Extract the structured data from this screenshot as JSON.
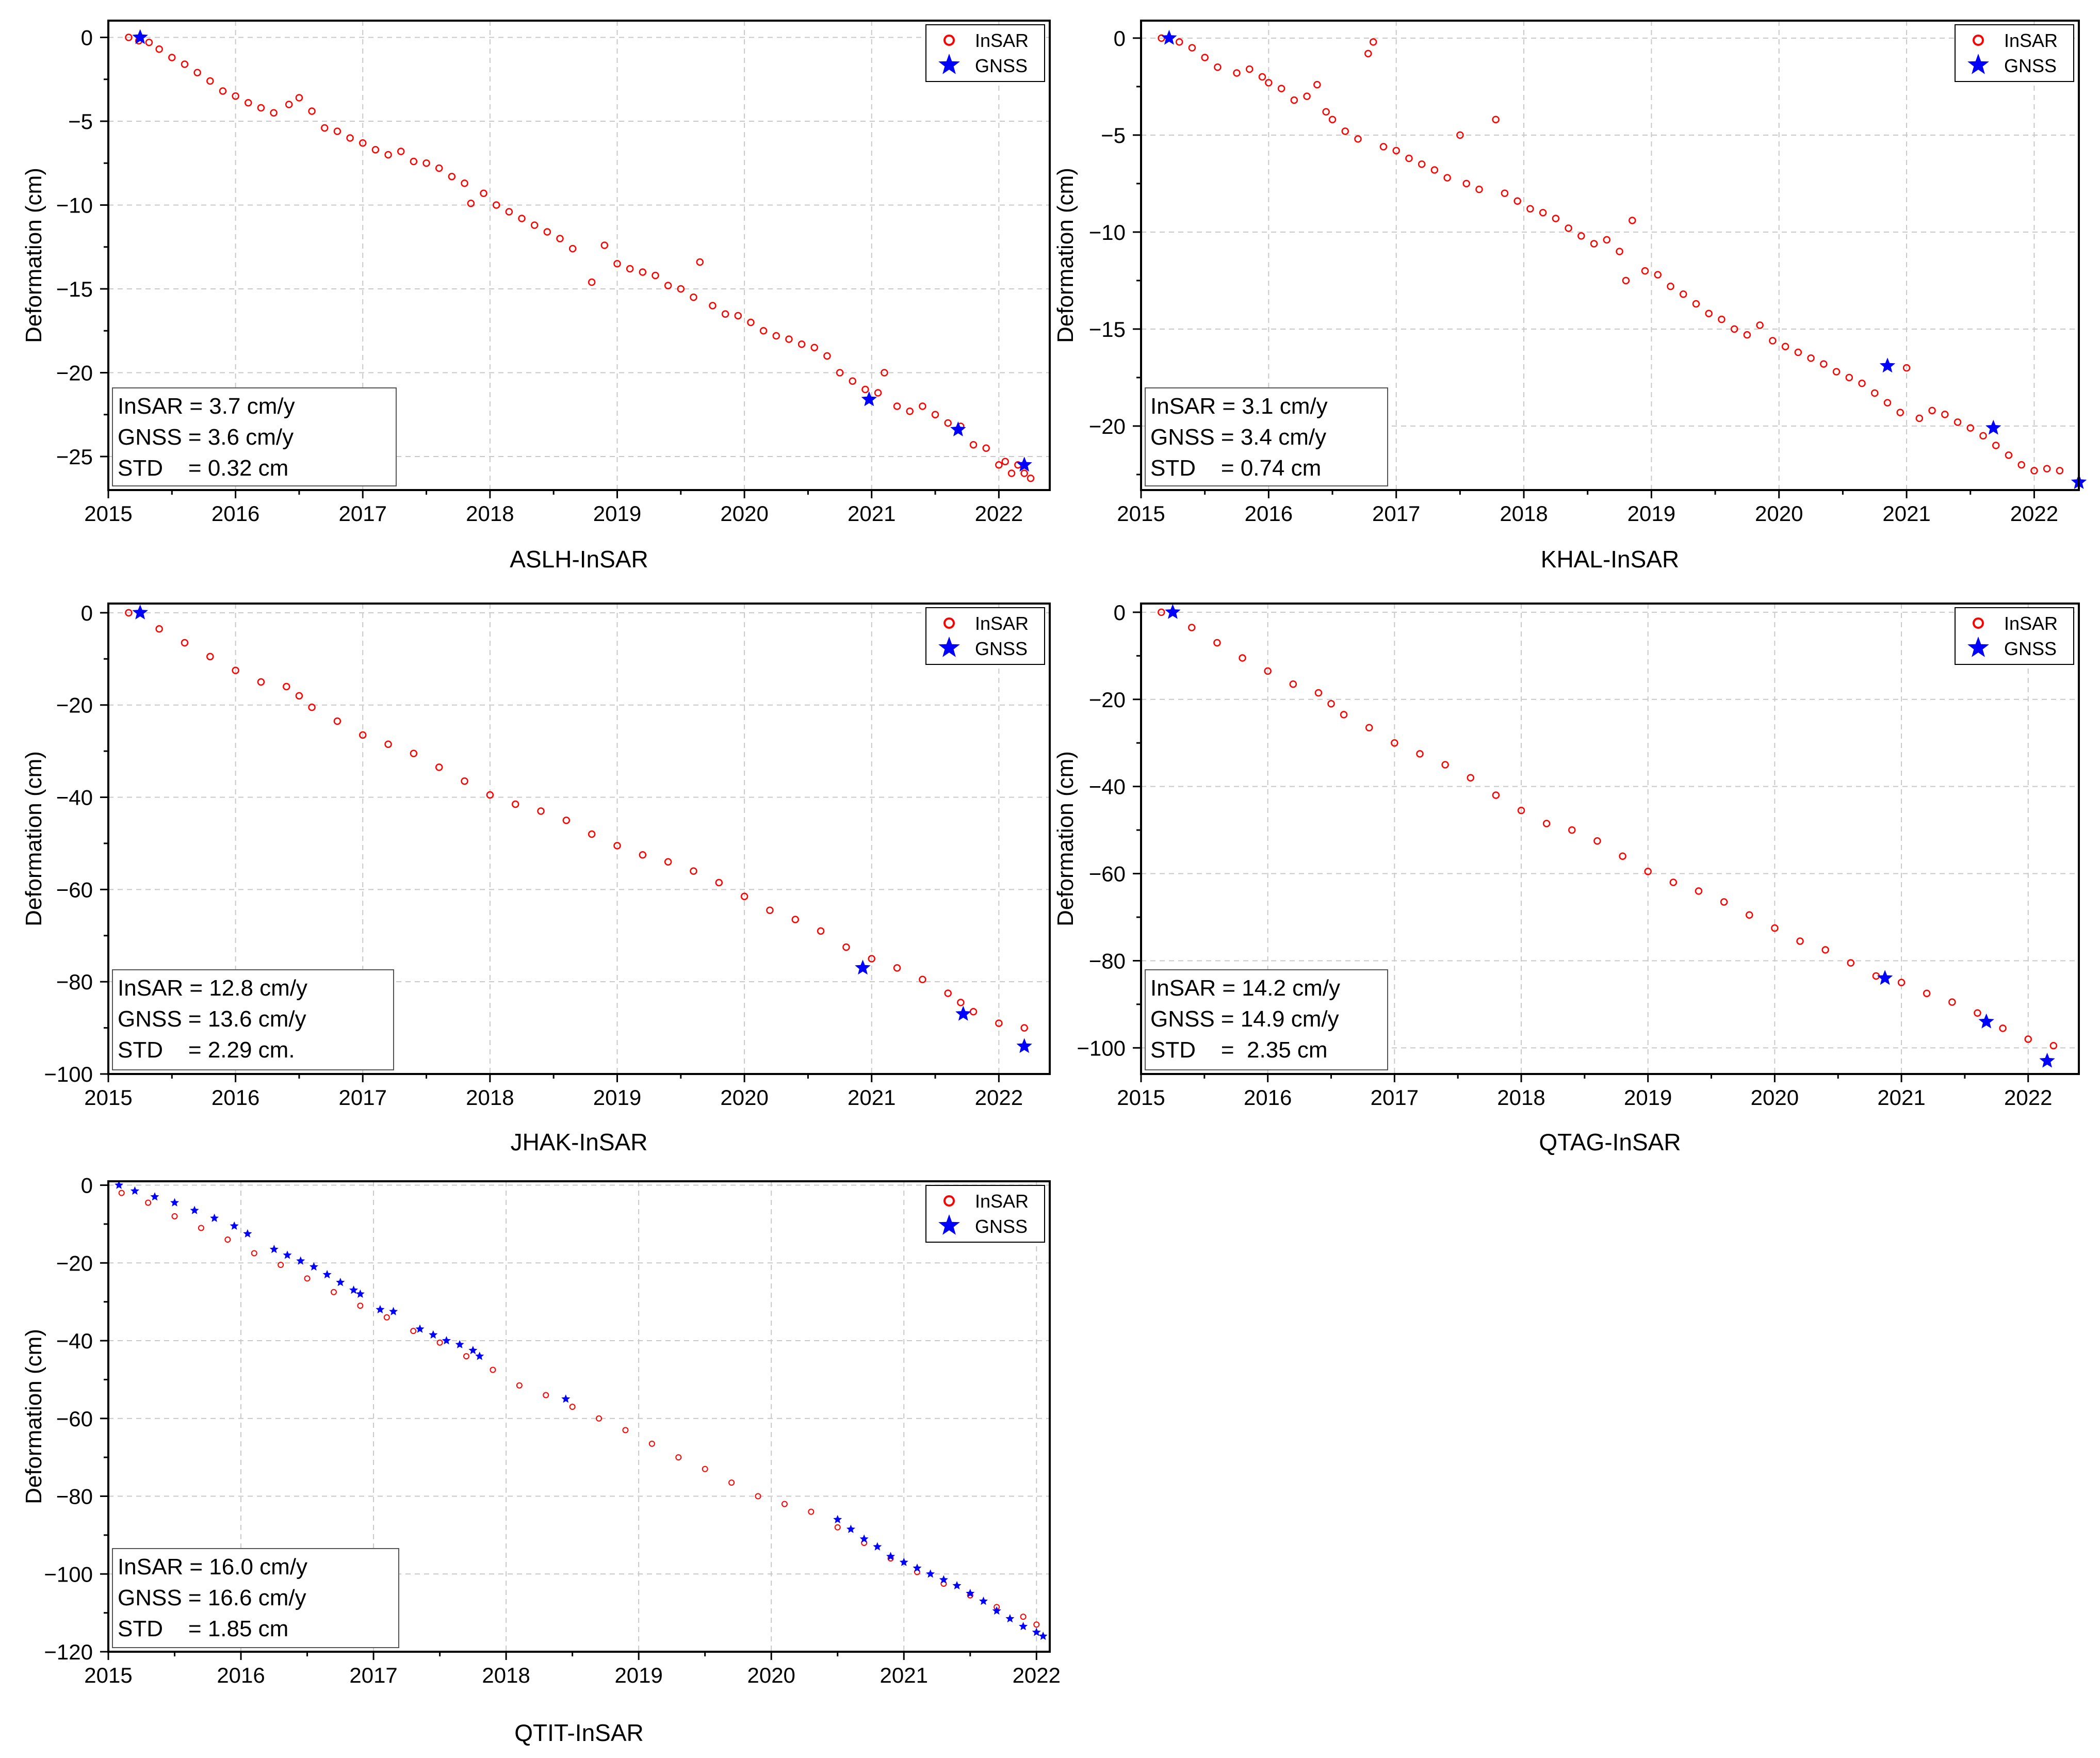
{
  "figure_title": "",
  "colors": {
    "insar": "#ff0000",
    "gnss": "#0000ff",
    "grid": "#c8c8c8",
    "frame": "#000000"
  },
  "legend": {
    "insar_label": "InSAR",
    "gnss_label": "GNSS",
    "insar_icon": "open-circle-marker-icon",
    "gnss_icon": "star-marker-icon"
  },
  "chart_data": [
    {
      "type": "scatter",
      "title": "",
      "caption": "ASLH-InSAR",
      "xlabel": "",
      "ylabel": "Deformation (cm)",
      "xlim": [
        2015,
        2022.4
      ],
      "ylim": [
        -27,
        1
      ],
      "xticks": [
        2015,
        2016,
        2017,
        2018,
        2019,
        2020,
        2021,
        2022
      ],
      "yticks": [
        -25,
        -20,
        -15,
        -10,
        -5,
        0
      ],
      "ytick_labels": [
        "−25",
        "−20",
        "−15",
        "−10",
        "−5",
        "0"
      ],
      "grid": true,
      "legend_position": "top-right",
      "stats": [
        "InSAR = 3.7 cm/y",
        "GNSS = 3.6 cm/y",
        "STD    = 0.32 cm"
      ],
      "series": [
        {
          "name": "InSAR",
          "x": [
            2015.16,
            2015.24,
            2015.32,
            2015.4,
            2015.5,
            2015.6,
            2015.7,
            2015.8,
            2015.9,
            2016.0,
            2016.1,
            2016.2,
            2016.3,
            2016.42,
            2016.5,
            2016.6,
            2016.7,
            2016.8,
            2016.9,
            2017.0,
            2017.1,
            2017.2,
            2017.3,
            2017.4,
            2017.5,
            2017.6,
            2017.7,
            2017.8,
            2017.85,
            2017.95,
            2018.05,
            2018.15,
            2018.25,
            2018.35,
            2018.45,
            2018.55,
            2018.65,
            2018.8,
            2018.9,
            2019.0,
            2019.1,
            2019.2,
            2019.3,
            2019.4,
            2019.5,
            2019.6,
            2019.65,
            2019.75,
            2019.85,
            2019.95,
            2020.05,
            2020.15,
            2020.25,
            2020.35,
            2020.45,
            2020.55,
            2020.65,
            2020.75,
            2020.85,
            2020.95,
            2021.05,
            2021.1,
            2021.2,
            2021.3,
            2021.4,
            2021.5,
            2021.6,
            2021.7,
            2021.8,
            2021.9,
            2022.0,
            2022.05,
            2022.1,
            2022.15,
            2022.2,
            2022.25
          ],
          "y": [
            0.0,
            -0.2,
            -0.3,
            -0.7,
            -1.2,
            -1.6,
            -2.1,
            -2.6,
            -3.2,
            -3.5,
            -3.9,
            -4.2,
            -4.5,
            -4.0,
            -3.6,
            -4.4,
            -5.4,
            -5.6,
            -6.0,
            -6.3,
            -6.7,
            -7.0,
            -6.8,
            -7.4,
            -7.5,
            -7.8,
            -8.3,
            -8.7,
            -9.9,
            -9.3,
            -10.0,
            -10.4,
            -10.8,
            -11.2,
            -11.6,
            -12.0,
            -12.6,
            -14.6,
            -12.4,
            -13.5,
            -13.8,
            -14.0,
            -14.2,
            -14.8,
            -15.0,
            -15.5,
            -13.4,
            -16.0,
            -16.5,
            -16.6,
            -17.0,
            -17.5,
            -17.8,
            -18.0,
            -18.3,
            -18.5,
            -19.0,
            -20.0,
            -20.5,
            -21.0,
            -21.2,
            -20.0,
            -22.0,
            -22.3,
            -22.0,
            -22.5,
            -23.0,
            -23.2,
            -24.3,
            -24.5,
            -25.5,
            -25.3,
            -26.0,
            -25.5,
            -26.0,
            -26.3
          ]
        },
        {
          "name": "GNSS",
          "x": [
            2015.25,
            2020.98,
            2021.68,
            2022.2
          ],
          "y": [
            0.0,
            -21.6,
            -23.4,
            -25.5
          ]
        }
      ]
    },
    {
      "type": "scatter",
      "title": "",
      "caption": "KHAL-InSAR",
      "xlabel": "",
      "ylabel": "Deformation (cm)",
      "xlim": [
        2015,
        2022.35
      ],
      "ylim": [
        -23.3,
        0.9
      ],
      "xticks": [
        2015,
        2016,
        2017,
        2018,
        2019,
        2020,
        2021,
        2022
      ],
      "yticks": [
        -20,
        -15,
        -10,
        -5,
        0
      ],
      "ytick_labels": [
        "−20",
        "−15",
        "−10",
        "−5",
        "0"
      ],
      "grid": true,
      "legend_position": "top-right",
      "stats": [
        "InSAR = 3.1 cm/y",
        "GNSS = 3.4 cm/y",
        "STD    = 0.74 cm"
      ],
      "series": [
        {
          "name": "InSAR",
          "x": [
            2015.16,
            2015.3,
            2015.4,
            2015.5,
            2015.6,
            2015.75,
            2015.85,
            2015.95,
            2016.0,
            2016.1,
            2016.2,
            2016.3,
            2016.38,
            2016.45,
            2016.5,
            2016.6,
            2016.7,
            2016.78,
            2016.82,
            2016.9,
            2017.0,
            2017.1,
            2017.2,
            2017.3,
            2017.4,
            2017.5,
            2017.55,
            2017.65,
            2017.78,
            2017.85,
            2017.95,
            2018.05,
            2018.15,
            2018.25,
            2018.35,
            2018.45,
            2018.55,
            2018.65,
            2018.75,
            2018.8,
            2018.85,
            2018.95,
            2019.05,
            2019.15,
            2019.25,
            2019.35,
            2019.45,
            2019.55,
            2019.65,
            2019.75,
            2019.85,
            2019.95,
            2020.05,
            2020.15,
            2020.25,
            2020.35,
            2020.45,
            2020.55,
            2020.65,
            2020.75,
            2020.85,
            2020.95,
            2021.0,
            2021.1,
            2021.2,
            2021.3,
            2021.4,
            2021.5,
            2021.6,
            2021.7,
            2021.8,
            2021.9,
            2022.0,
            2022.1,
            2022.2
          ],
          "y": [
            0.0,
            -0.2,
            -0.5,
            -1.0,
            -1.5,
            -1.8,
            -1.6,
            -2.0,
            -2.3,
            -2.6,
            -3.2,
            -3.0,
            -2.4,
            -3.8,
            -4.2,
            -4.8,
            -5.2,
            -0.8,
            -0.2,
            -5.6,
            -5.8,
            -6.2,
            -6.5,
            -6.8,
            -7.2,
            -5.0,
            -7.5,
            -7.8,
            -4.2,
            -8.0,
            -8.4,
            -8.8,
            -9.0,
            -9.3,
            -9.8,
            -10.2,
            -10.6,
            -10.4,
            -11.0,
            -12.5,
            -9.4,
            -12.0,
            -12.2,
            -12.8,
            -13.2,
            -13.7,
            -14.2,
            -14.5,
            -15.0,
            -15.3,
            -14.8,
            -15.6,
            -15.9,
            -16.2,
            -16.5,
            -16.8,
            -17.2,
            -17.5,
            -17.8,
            -18.3,
            -18.8,
            -19.3,
            -17.0,
            -19.6,
            -19.2,
            -19.4,
            -19.8,
            -20.1,
            -20.5,
            -21.0,
            -21.5,
            -22.0,
            -22.3,
            -22.2,
            -22.3
          ]
        },
        {
          "name": "GNSS",
          "x": [
            2015.22,
            2020.85,
            2021.68,
            2022.35
          ],
          "y": [
            0.0,
            -16.9,
            -20.1,
            -22.9
          ]
        }
      ]
    },
    {
      "type": "scatter",
      "title": "",
      "caption": "JHAK-InSAR",
      "xlabel": "",
      "ylabel": "Deformation (cm)",
      "xlim": [
        2015,
        2022.4
      ],
      "ylim": [
        -100,
        2
      ],
      "xticks": [
        2015,
        2016,
        2017,
        2018,
        2019,
        2020,
        2021,
        2022
      ],
      "yticks": [
        -100,
        -80,
        -60,
        -40,
        -20,
        0
      ],
      "ytick_labels": [
        "−100",
        "−80",
        "−60",
        "−40",
        "−20",
        "0"
      ],
      "grid": true,
      "legend_position": "top-right",
      "stats": [
        "InSAR = 12.8 cm/y",
        "GNSS = 13.6 cm/y",
        "STD    = 2.29 cm."
      ],
      "series": [
        {
          "name": "InSAR",
          "x": [
            2015.16,
            2015.4,
            2015.6,
            2015.8,
            2016.0,
            2016.2,
            2016.4,
            2016.5,
            2016.6,
            2016.8,
            2017.0,
            2017.2,
            2017.4,
            2017.6,
            2017.8,
            2018.0,
            2018.2,
            2018.4,
            2018.6,
            2018.8,
            2019.0,
            2019.2,
            2019.4,
            2019.6,
            2019.8,
            2020.0,
            2020.2,
            2020.4,
            2020.6,
            2020.8,
            2021.0,
            2021.2,
            2021.4,
            2021.6,
            2021.7,
            2021.8,
            2022.0,
            2022.2
          ],
          "y": [
            0.0,
            -3.5,
            -6.5,
            -9.5,
            -12.5,
            -15.0,
            -16.0,
            -18.0,
            -20.5,
            -23.5,
            -26.5,
            -28.5,
            -30.5,
            -33.5,
            -36.5,
            -39.5,
            -41.5,
            -43.0,
            -45.0,
            -48.0,
            -50.5,
            -52.5,
            -54.0,
            -56.0,
            -58.5,
            -61.5,
            -64.5,
            -66.5,
            -69.0,
            -72.5,
            -75.0,
            -77.0,
            -79.5,
            -82.5,
            -84.5,
            -86.5,
            -89.0,
            -90.0
          ]
        },
        {
          "name": "GNSS",
          "x": [
            2015.25,
            2020.93,
            2021.72,
            2022.2
          ],
          "y": [
            0.0,
            -77.0,
            -87.0,
            -94.0
          ]
        }
      ]
    },
    {
      "type": "scatter",
      "title": "",
      "caption": "QTAG-InSAR",
      "xlabel": "",
      "ylabel": "Deformation (cm)",
      "xlim": [
        2015,
        2022.4
      ],
      "ylim": [
        -106,
        2
      ],
      "xticks": [
        2015,
        2016,
        2017,
        2018,
        2019,
        2020,
        2021,
        2022
      ],
      "yticks": [
        -100,
        -80,
        -60,
        -40,
        -20,
        0
      ],
      "ytick_labels": [
        "−100",
        "−80",
        "−60",
        "−40",
        "−20",
        "0"
      ],
      "grid": true,
      "legend_position": "top-right",
      "stats": [
        "InSAR = 14.2 cm/y",
        "GNSS = 14.9 cm/y",
        "STD    =  2.35 cm"
      ],
      "series": [
        {
          "name": "InSAR",
          "x": [
            2015.16,
            2015.4,
            2015.6,
            2015.8,
            2016.0,
            2016.2,
            2016.4,
            2016.5,
            2016.6,
            2016.8,
            2017.0,
            2017.2,
            2017.4,
            2017.6,
            2017.8,
            2018.0,
            2018.2,
            2018.4,
            2018.6,
            2018.8,
            2019.0,
            2019.2,
            2019.4,
            2019.6,
            2019.8,
            2020.0,
            2020.2,
            2020.4,
            2020.6,
            2020.8,
            2021.0,
            2021.2,
            2021.4,
            2021.6,
            2021.8,
            2022.0,
            2022.2
          ],
          "y": [
            0.0,
            -3.5,
            -7.0,
            -10.5,
            -13.5,
            -16.5,
            -18.5,
            -21.0,
            -23.5,
            -26.5,
            -30.0,
            -32.5,
            -35.0,
            -38.0,
            -42.0,
            -45.5,
            -48.5,
            -50.0,
            -52.5,
            -56.0,
            -59.5,
            -62.0,
            -64.0,
            -66.5,
            -69.5,
            -72.5,
            -75.5,
            -77.5,
            -80.5,
            -83.5,
            -85.0,
            -87.5,
            -89.5,
            -92.0,
            -95.5,
            -98.0,
            -99.5
          ]
        },
        {
          "name": "GNSS",
          "x": [
            2015.25,
            2020.87,
            2021.67,
            2022.15
          ],
          "y": [
            0.0,
            -84.0,
            -94.0,
            -103.0
          ]
        }
      ]
    },
    {
      "type": "scatter",
      "title": "",
      "caption": "QTIT-InSAR",
      "xlabel": "",
      "ylabel": "Deformation (cm)",
      "xlim": [
        2015,
        2022.1
      ],
      "ylim": [
        -120,
        1
      ],
      "xticks": [
        2015,
        2016,
        2017,
        2018,
        2019,
        2020,
        2021,
        2022
      ],
      "yticks": [
        -120,
        -100,
        -80,
        -60,
        -40,
        -20,
        0
      ],
      "ytick_labels": [
        "−120",
        "−100",
        "−80",
        "−60",
        "−40",
        "−20",
        "0"
      ],
      "grid": true,
      "legend_position": "top-right",
      "stats": [
        "InSAR = 16.0 cm/y",
        "GNSS = 16.6 cm/y",
        "STD    = 1.85 cm"
      ],
      "series": [
        {
          "name": "InSAR",
          "x": [
            2015.1,
            2015.3,
            2015.5,
            2015.7,
            2015.9,
            2016.1,
            2016.3,
            2016.5,
            2016.7,
            2016.9,
            2017.1,
            2017.3,
            2017.5,
            2017.7,
            2017.9,
            2018.1,
            2018.3,
            2018.5,
            2018.7,
            2018.9,
            2019.1,
            2019.3,
            2019.5,
            2019.7,
            2019.9,
            2020.1,
            2020.3,
            2020.5,
            2020.7,
            2020.9,
            2021.1,
            2021.3,
            2021.5,
            2021.7,
            2021.9,
            2022.0
          ],
          "y": [
            -2.0,
            -4.5,
            -8.0,
            -11.0,
            -14.0,
            -17.5,
            -20.5,
            -24.0,
            -27.5,
            -31.0,
            -34.0,
            -37.5,
            -40.5,
            -44.0,
            -47.5,
            -51.5,
            -54.0,
            -57.0,
            -60.0,
            -63.0,
            -66.5,
            -70.0,
            -73.0,
            -76.5,
            -80.0,
            -82.0,
            -84.0,
            -88.0,
            -92.0,
            -96.0,
            -99.5,
            -102.5,
            -105.5,
            -108.5,
            -111.0,
            -113.0
          ]
        },
        {
          "name": "GNSS",
          "x": [
            2015.08,
            2015.2,
            2015.35,
            2015.5,
            2015.65,
            2015.8,
            2015.95,
            2016.05,
            2016.25,
            2016.35,
            2016.45,
            2016.55,
            2016.65,
            2016.75,
            2016.85,
            2016.9,
            2017.05,
            2017.15,
            2017.35,
            2017.45,
            2017.55,
            2017.65,
            2017.75,
            2017.8,
            2018.45,
            2020.5,
            2020.6,
            2020.7,
            2020.8,
            2020.9,
            2021.0,
            2021.1,
            2021.2,
            2021.3,
            2021.4,
            2021.5,
            2021.6,
            2021.7,
            2021.8,
            2021.9,
            2022.0,
            2022.05
          ],
          "y": [
            0.0,
            -1.5,
            -3.0,
            -4.5,
            -6.5,
            -8.5,
            -10.5,
            -12.5,
            -16.5,
            -18.0,
            -19.5,
            -21.0,
            -23.0,
            -25.0,
            -27.0,
            -28.0,
            -32.0,
            -32.5,
            -37.0,
            -38.5,
            -40.0,
            -41.0,
            -42.5,
            -44.0,
            -55.0,
            -86.0,
            -88.5,
            -91.0,
            -93.0,
            -95.5,
            -97.0,
            -98.5,
            -100.0,
            -101.5,
            -103.0,
            -105.0,
            -107.0,
            -109.5,
            -111.5,
            -113.5,
            -115.0,
            -116.0
          ]
        }
      ]
    }
  ]
}
